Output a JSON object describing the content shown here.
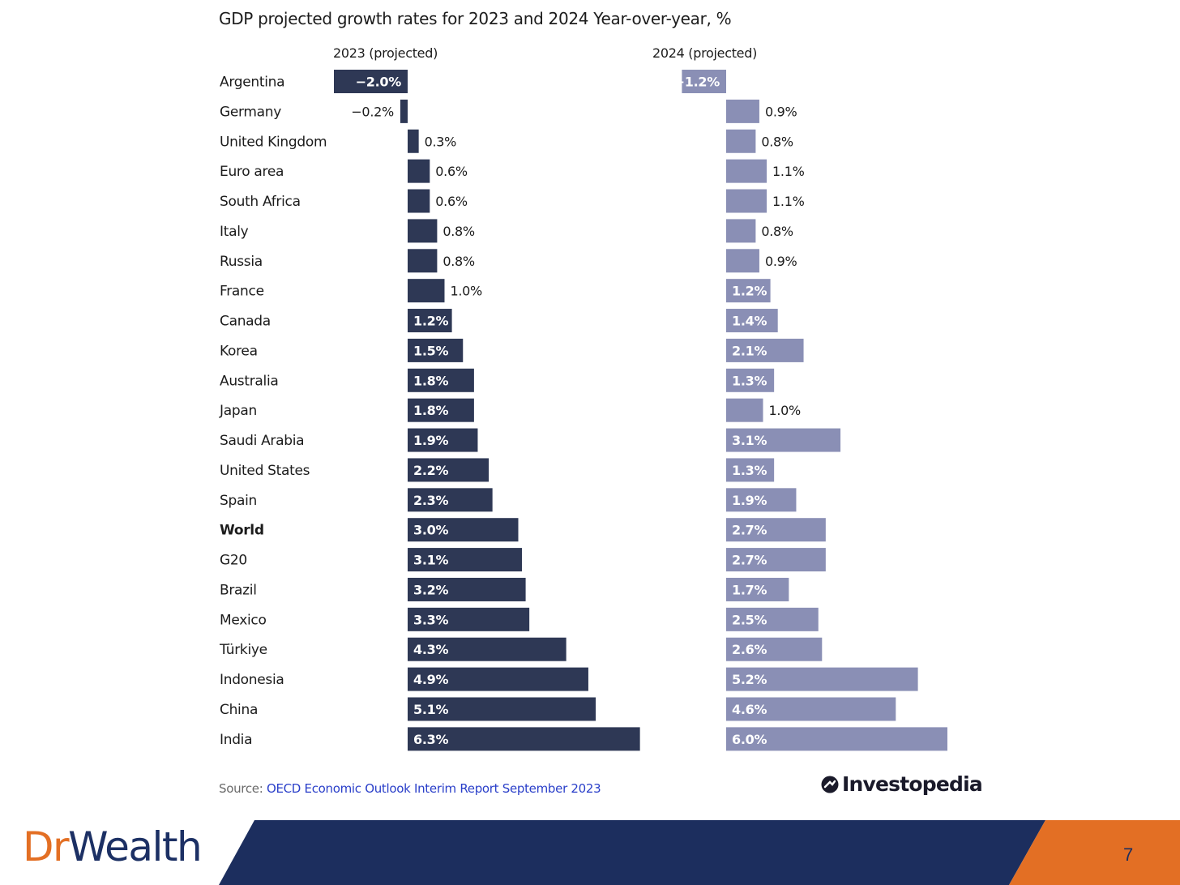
{
  "chart_data": {
    "type": "bar",
    "title": "GDP projected growth rates for 2023 and 2024 Year-over-year, %",
    "categories": [
      "Argentina",
      "Germany",
      "United Kingdom",
      "Euro area",
      "South Africa",
      "Italy",
      "Russia",
      "France",
      "Canada",
      "Korea",
      "Australia",
      "Japan",
      "Saudi Arabia",
      "United States",
      "Spain",
      "World",
      "G20",
      "Brazil",
      "Mexico",
      "Türkiye",
      "Indonesia",
      "China",
      "India"
    ],
    "highlighted_category": "World",
    "series": [
      {
        "name": "2023 (projected)",
        "color": "#2e3855",
        "values": [
          -2.0,
          -0.2,
          0.3,
          0.6,
          0.6,
          0.8,
          0.8,
          1.0,
          1.2,
          1.5,
          1.8,
          1.8,
          1.9,
          2.2,
          2.3,
          3.0,
          3.1,
          3.2,
          3.3,
          4.3,
          4.9,
          5.1,
          6.3
        ],
        "labels": [
          "−2.0%",
          "−0.2%",
          "0.3%",
          "0.6%",
          "0.6%",
          "0.8%",
          "0.8%",
          "1.0%",
          "1.2%",
          "1.5%",
          "1.8%",
          "1.8%",
          "1.9%",
          "2.2%",
          "2.3%",
          "3.0%",
          "3.1%",
          "3.2%",
          "3.3%",
          "4.3%",
          "4.9%",
          "5.1%",
          "6.3%"
        ]
      },
      {
        "name": "2024 (projected)",
        "color": "#8a8fb5",
        "values": [
          -1.2,
          0.9,
          0.8,
          1.1,
          1.1,
          0.8,
          0.9,
          1.2,
          1.4,
          2.1,
          1.3,
          1.0,
          3.1,
          1.3,
          1.9,
          2.7,
          2.7,
          1.7,
          2.5,
          2.6,
          5.2,
          4.6,
          6.0
        ],
        "labels": [
          "−1.2%",
          "0.9%",
          "0.8%",
          "1.1%",
          "1.1%",
          "0.8%",
          "0.9%",
          "1.2%",
          "1.4%",
          "2.1%",
          "1.3%",
          "1.0%",
          "3.1%",
          "1.3%",
          "1.9%",
          "2.7%",
          "2.7%",
          "1.7%",
          "2.5%",
          "2.6%",
          "5.2%",
          "4.6%",
          "6.0%"
        ]
      }
    ],
    "label_inside_min": 1.2,
    "grid": false,
    "legend": "top"
  },
  "source": {
    "prefix": "Source: ",
    "link_text": "OECD Economic Outlook Interim Report September 2023"
  },
  "brand": {
    "investopedia": "Investopedia",
    "dr": "Dr",
    "wealth": "Wealth"
  },
  "page_number": "7",
  "colors": {
    "navy": "#1c2e5e",
    "orange": "#e36f24"
  }
}
